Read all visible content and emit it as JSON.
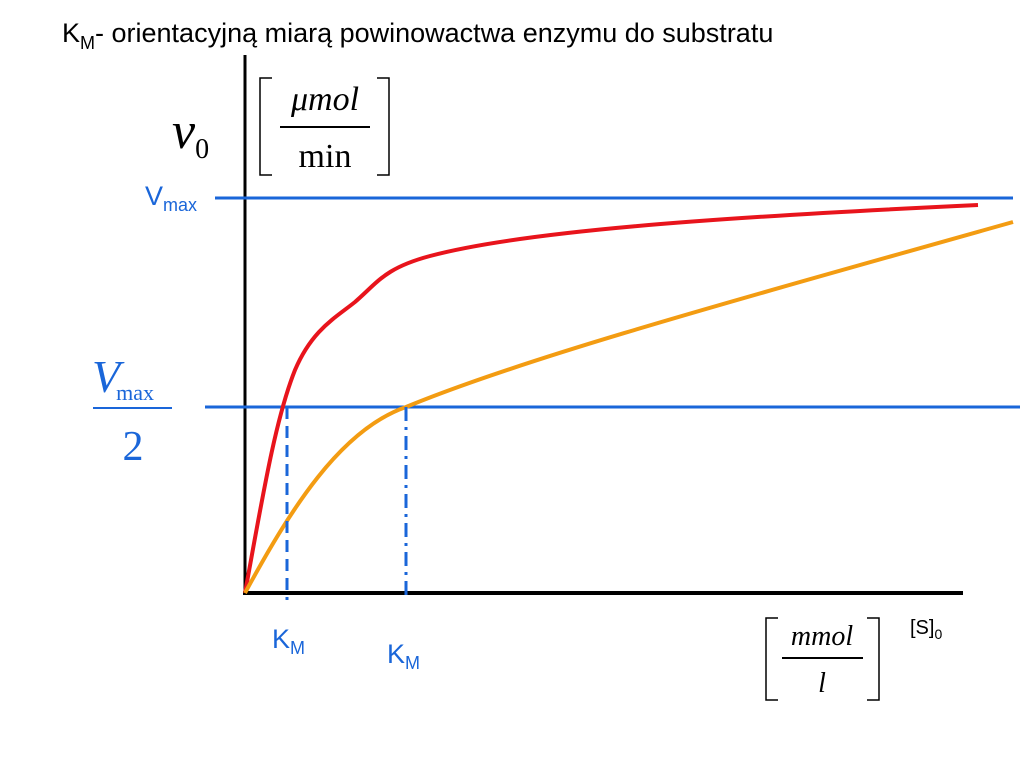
{
  "title": {
    "main": "K",
    "sub": "M",
    "rest": "- orientacyjną miarą powinowactwa enzymu do substratu"
  },
  "y_axis": {
    "symbol": "v",
    "sub": "0",
    "unit_num": "μmol",
    "unit_den": "min"
  },
  "vmax": {
    "main": "V",
    "sub": "max"
  },
  "half_vmax": {
    "num_main": "V",
    "num_sub": "max",
    "den": "2"
  },
  "km_labels": [
    {
      "main": "K",
      "sub": "M"
    },
    {
      "main": "K",
      "sub": "M"
    }
  ],
  "x_axis": {
    "unit_num": "mmol",
    "unit_den": "l",
    "label_main": "[S]",
    "label_sub": "0"
  }
}
